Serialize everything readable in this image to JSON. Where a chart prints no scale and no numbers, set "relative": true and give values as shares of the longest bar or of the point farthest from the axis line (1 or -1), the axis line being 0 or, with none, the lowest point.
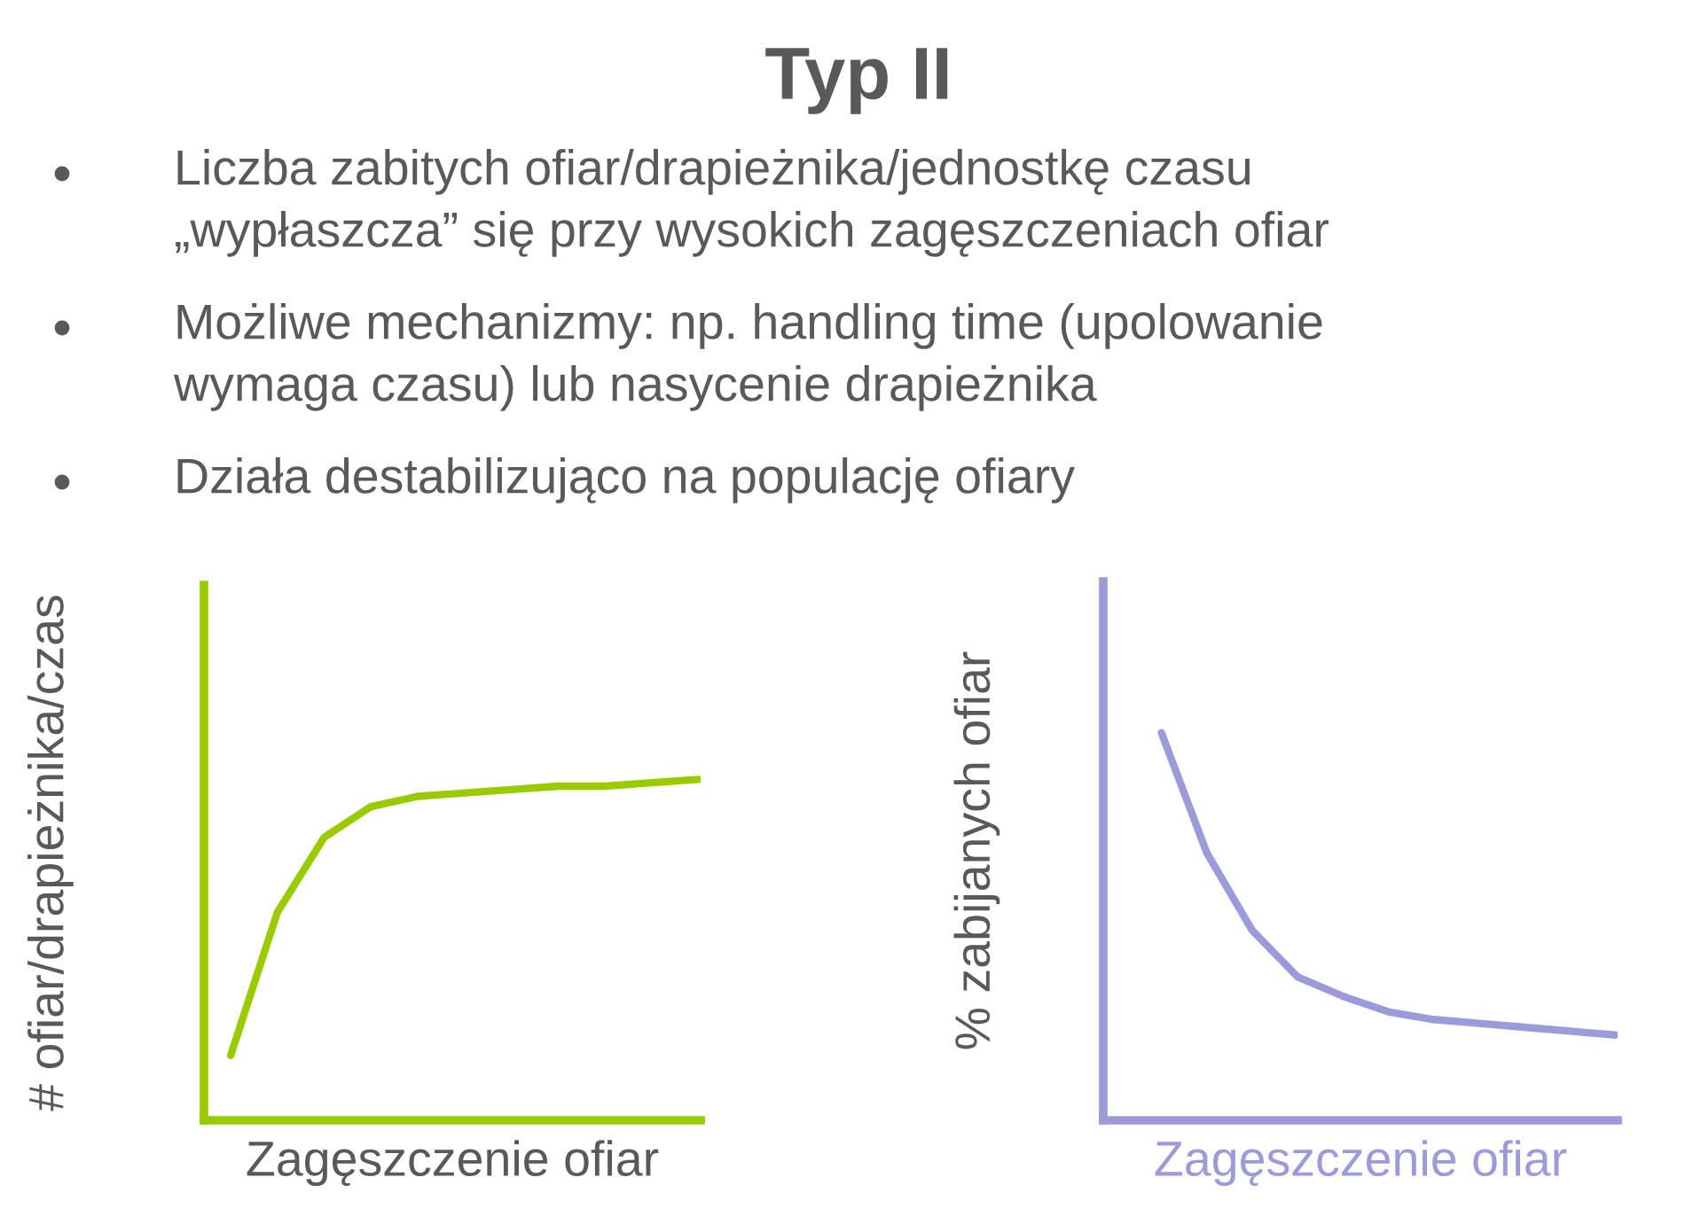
{
  "chart_data": [
    {
      "type": "other",
      "title": "Typ II",
      "annotations": [
        "Liczba zabitych ofiar/drapieżnika/jednostkę czasu\n„wypłaszcza” się przy wysokich zagęszczeniach ofiar",
        "Możliwe mechanizmy: np. handling time (upolowanie\nwymaga czasu) lub nasycenie drapieżnika",
        "Działa destabilizująco na populację ofiary"
      ]
    },
    {
      "type": "line",
      "relative": true,
      "xlabel": "Zagęszczenie ofiar",
      "ylabel": "# ofiar/drapieżnika/czas",
      "categories": [
        null,
        null,
        null,
        null,
        null,
        null,
        null,
        null,
        null,
        null,
        null
      ],
      "series": [
        {
          "color": "#99cc00",
          "values": [
            0.19,
            0.61,
            0.83,
            0.92,
            0.95,
            0.96,
            0.97,
            0.98,
            0.98,
            0.99,
            1.0
          ]
        }
      ]
    },
    {
      "type": "line",
      "relative": true,
      "xlabel": "Zagęszczenie ofiar",
      "ylabel": "% zabijanych ofiar",
      "categories": [
        null,
        null,
        null,
        null,
        null,
        null,
        null,
        null,
        null,
        null,
        null
      ],
      "series": [
        {
          "color": "#9b9bdb",
          "values": [
            1.0,
            0.69,
            0.49,
            0.37,
            0.32,
            0.28,
            0.26,
            0.25,
            0.24,
            0.23,
            0.22
          ]
        }
      ]
    }
  ]
}
